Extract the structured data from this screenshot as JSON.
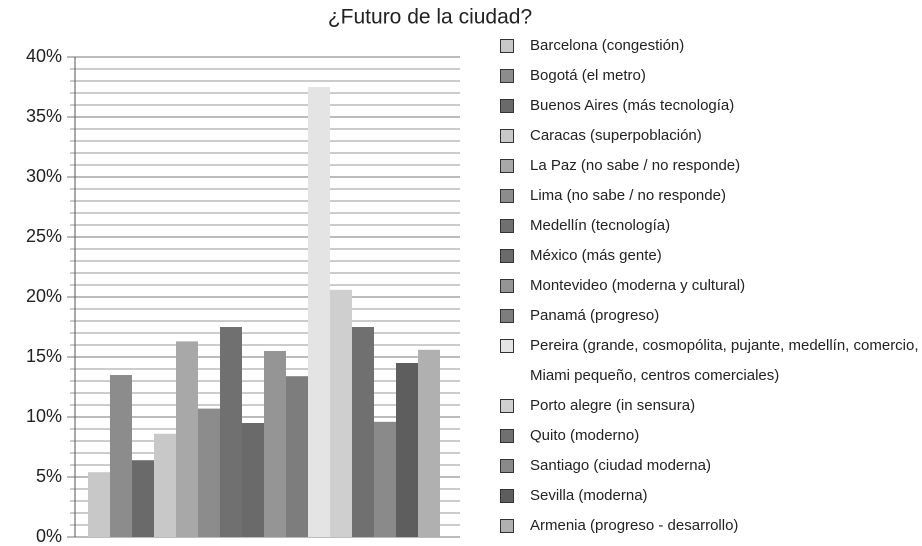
{
  "chart_data": {
    "type": "bar",
    "title": "¿Futuro de la ciudad?",
    "categories": [
      "Barcelona (congestión)",
      "Bogotá (el metro)",
      "Buenos Aires (más tecnología)",
      "Caracas (superpoblación)",
      "La Paz (no sabe / no responde)",
      "Lima  (no sabe / no responde)",
      "Medellín (tecnología)",
      "México (más gente)",
      "Montevideo (moderna y cultural)",
      "Panamá (progreso)",
      "Pereira (grande, cosmopólita, pujante, medellín, comercio, Miami pequeño, centros comerciales)",
      "Porto alegre (in sensura)",
      "Quito (moderno)",
      "Santiago (ciudad moderna)",
      "Sevilla (moderna)",
      "Armenia (progreso - desarrollo)"
    ],
    "values": [
      5.4,
      13.5,
      6.4,
      8.6,
      16.3,
      10.7,
      17.5,
      9.5,
      15.5,
      13.4,
      37.5,
      20.6,
      17.5,
      9.6,
      14.5,
      15.6
    ],
    "colors": [
      "#c8c8c8",
      "#8c8c8c",
      "#6a6a6a",
      "#c8c8c8",
      "#a8a8a8",
      "#8c8c8c",
      "#707070",
      "#6a6a6a",
      "#959595",
      "#7d7d7d",
      "#e4e4e4",
      "#cfcfcf",
      "#707070",
      "#8a8a8a",
      "#5e5e5e",
      "#b0b0b0"
    ],
    "ylim": [
      0,
      40
    ],
    "yticks": [
      {
        "value": 0,
        "label": "0%"
      },
      {
        "value": 5,
        "label": "5%"
      },
      {
        "value": 10,
        "label": "10%"
      },
      {
        "value": 15,
        "label": "15%"
      },
      {
        "value": 20,
        "label": "20%"
      },
      {
        "value": 25,
        "label": "25%"
      },
      {
        "value": 30,
        "label": "30%"
      },
      {
        "value": 35,
        "label": "35%"
      },
      {
        "value": 40,
        "label": "40%"
      }
    ],
    "minor_yticks": [
      1,
      2,
      3,
      4,
      6,
      7,
      8,
      9,
      11,
      12,
      13,
      14,
      16,
      17,
      18,
      19,
      21,
      22,
      23,
      24,
      26,
      27,
      28,
      29,
      31,
      32,
      33,
      34,
      36,
      37,
      38,
      39
    ],
    "grid": true,
    "legend": "right"
  }
}
